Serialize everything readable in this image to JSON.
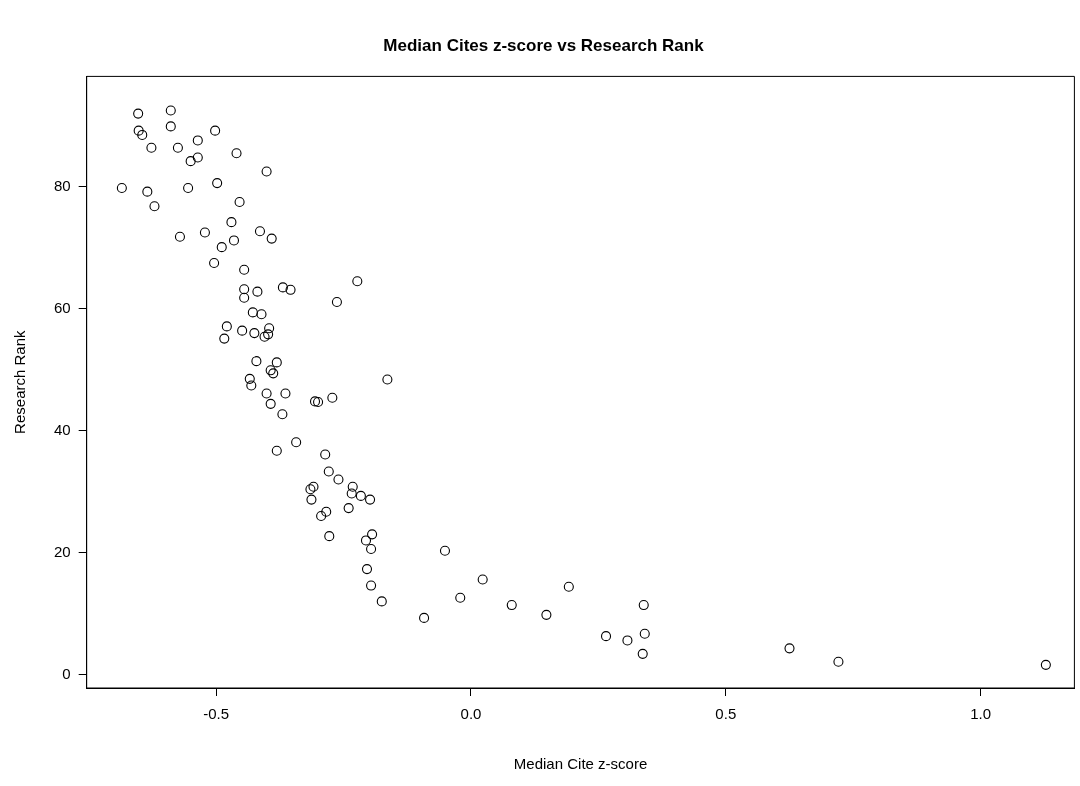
{
  "chart_data": {
    "type": "scatter",
    "title": "Median Cites z-score vs Research Rank",
    "xlabel": "Median Cite z-score",
    "ylabel": "Research Rank",
    "x": [
      -0.653,
      -0.589,
      -0.652,
      -0.645,
      -0.589,
      -0.502,
      -0.536,
      -0.627,
      -0.575,
      -0.46,
      -0.536,
      -0.55,
      -0.401,
      -0.685,
      -0.635,
      -0.555,
      -0.498,
      -0.621,
      -0.454,
      -0.47,
      -0.571,
      -0.522,
      -0.414,
      -0.391,
      -0.465,
      -0.489,
      -0.504,
      -0.445,
      -0.445,
      -0.419,
      -0.369,
      -0.354,
      -0.223,
      -0.263,
      -0.445,
      -0.428,
      -0.411,
      -0.479,
      -0.484,
      -0.449,
      -0.425,
      -0.396,
      -0.398,
      -0.405,
      -0.421,
      -0.381,
      -0.393,
      -0.388,
      -0.434,
      -0.431,
      -0.164,
      -0.401,
      -0.364,
      -0.393,
      -0.37,
      -0.306,
      -0.3,
      -0.272,
      -0.343,
      -0.381,
      -0.286,
      -0.279,
      -0.26,
      -0.232,
      -0.309,
      -0.315,
      -0.234,
      -0.216,
      -0.198,
      -0.313,
      -0.24,
      -0.284,
      -0.294,
      -0.278,
      -0.194,
      -0.206,
      -0.196,
      -0.051,
      -0.204,
      -0.196,
      -0.175,
      -0.092,
      0.023,
      -0.021,
      0.192,
      0.339,
      0.08,
      0.148,
      0.265,
      0.307,
      0.341,
      0.337,
      0.625,
      0.721,
      1.128
    ],
    "values": [
      92.0,
      92.5,
      89.2,
      88.5,
      89.9,
      89.2,
      87.6,
      86.4,
      86.4,
      85.5,
      84.8,
      84.2,
      82.5,
      79.8,
      79.2,
      79.8,
      80.6,
      76.8,
      77.5,
      74.2,
      71.8,
      72.5,
      72.7,
      71.5,
      71.2,
      70.1,
      67.5,
      66.4,
      63.2,
      62.8,
      63.5,
      63.1,
      64.5,
      61.1,
      61.8,
      59.4,
      59.1,
      57.1,
      55.1,
      56.4,
      56.0,
      56.8,
      55.8,
      55.4,
      51.4,
      51.2,
      49.9,
      49.4,
      48.5,
      47.4,
      48.4,
      46.1,
      46.1,
      44.4,
      42.7,
      44.8,
      44.7,
      45.4,
      38.1,
      36.7,
      36.1,
      33.3,
      32.0,
      30.8,
      30.8,
      30.4,
      29.7,
      29.3,
      28.7,
      28.7,
      27.3,
      26.7,
      26.0,
      22.7,
      23.0,
      22.0,
      20.6,
      20.3,
      17.3,
      14.6,
      12.0,
      9.3,
      15.6,
      12.6,
      14.4,
      11.4,
      11.4,
      9.8,
      6.3,
      5.6,
      6.7,
      3.4,
      4.3,
      2.1,
      1.6
    ],
    "color": "#000000",
    "marker": "circle",
    "xlim": [
      -0.754,
      1.184
    ],
    "ylim": [
      -2.2,
      98.1
    ],
    "xticks": [
      -0.5,
      {
        "value": 0,
        "label": "0.0"
      },
      0.5,
      {
        "value": 1,
        "label": "1.0"
      }
    ],
    "yticks": [
      0,
      20,
      40,
      60,
      80
    ],
    "grid": false,
    "legend": false
  }
}
